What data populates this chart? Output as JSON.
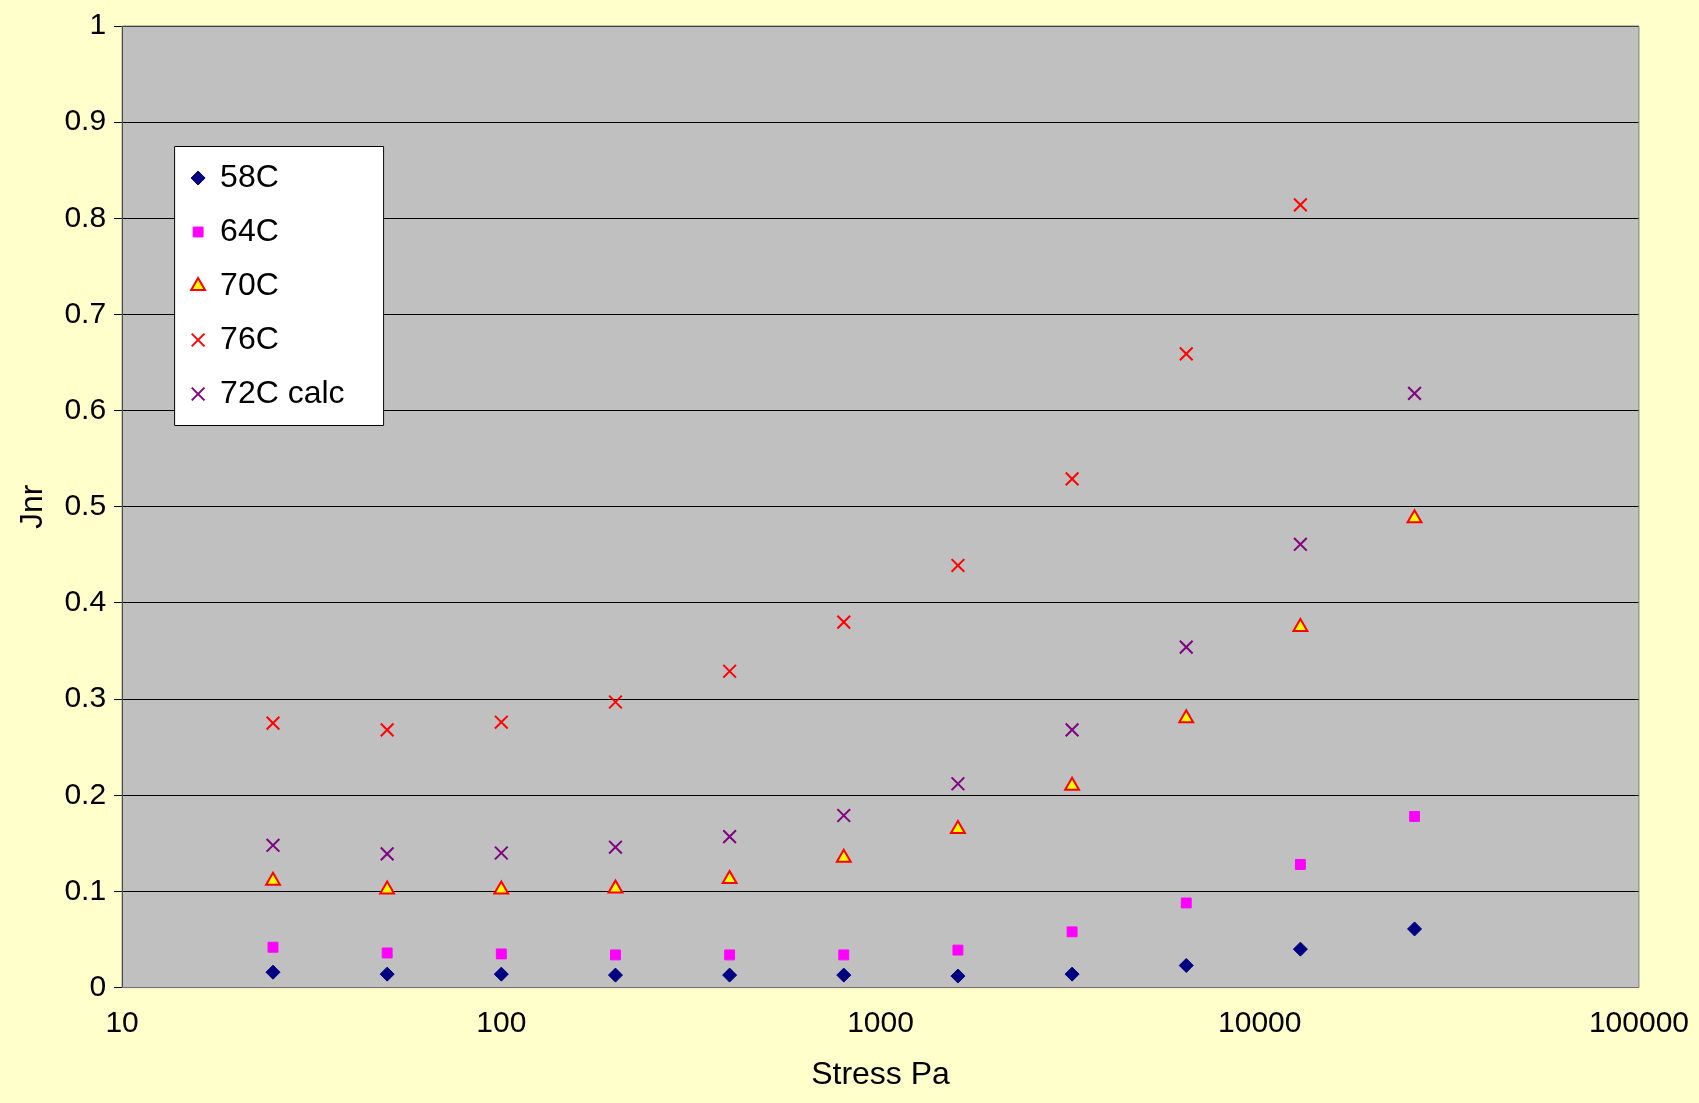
{
  "chart_data": {
    "type": "scatter",
    "xlabel": "Stress Pa",
    "ylabel": "Jnr",
    "log": "x",
    "x": [
      25,
      50,
      100,
      200,
      400,
      800,
      1600,
      3200,
      6400,
      12800,
      25600
    ],
    "xlim": [
      10,
      100000
    ],
    "xticks": [
      10,
      100,
      1000,
      10000,
      100000
    ],
    "ylim": [
      0,
      1
    ],
    "yticks": [
      0,
      0.1,
      0.2,
      0.3,
      0.4,
      0.5,
      0.6,
      0.7,
      0.8,
      0.9,
      1
    ],
    "grid": "y",
    "legend": "top left",
    "series": [
      {
        "name": "58C",
        "color": "#000080",
        "marker": "diamond",
        "values": [
          0.016,
          0.014,
          0.014,
          0.013,
          0.013,
          0.013,
          0.012,
          0.014,
          0.023,
          0.04,
          0.061
        ]
      },
      {
        "name": "64C",
        "color": "#ff00ff",
        "marker": "square",
        "values": [
          0.042,
          0.036,
          0.035,
          0.034,
          0.034,
          0.034,
          0.039,
          0.058,
          0.088,
          0.128,
          0.178
        ]
      },
      {
        "name": "70C",
        "color": "#ffff00",
        "marker": "triangle",
        "values": [
          0.111,
          0.102,
          0.102,
          0.103,
          0.113,
          0.135,
          0.165,
          0.21,
          0.28,
          0.375,
          0.488
        ]
      },
      {
        "name": "76C",
        "color": "#ff0000",
        "marker": "cross",
        "values": [
          0.275,
          0.268,
          0.276,
          0.297,
          0.329,
          0.38,
          0.439,
          0.529,
          0.659,
          0.814,
          null
        ]
      },
      {
        "name": "72C calc",
        "color": "#800080",
        "marker": "cross",
        "values": [
          0.148,
          0.139,
          0.14,
          0.146,
          0.157,
          0.179,
          0.212,
          0.268,
          0.354,
          0.461,
          0.618
        ]
      }
    ]
  }
}
